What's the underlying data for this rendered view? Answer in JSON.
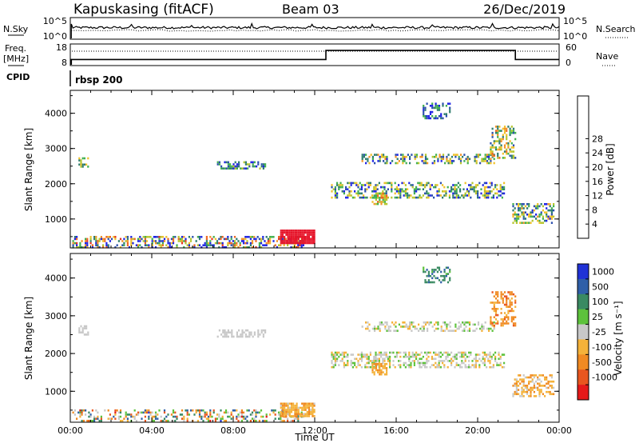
{
  "header": {
    "station": "Kapuskasing (fitACF)",
    "beam": "Beam 03",
    "date": "26/Dec/2019"
  },
  "nsky_panel": {
    "left_label": "N.Sky",
    "right_label": "N.Search",
    "left_ticks": [
      "10^5",
      "10^0"
    ],
    "right_ticks": [
      "10^5",
      "10^0"
    ]
  },
  "freq_panel": {
    "left_label_top": "Freq.",
    "left_label_unit": "[MHz]",
    "right_label": "Nave",
    "left_ticks": [
      "18",
      "8"
    ],
    "right_ticks": [
      "60",
      "0"
    ],
    "freq_steps": [
      {
        "t": 0.05,
        "v": 10.8
      },
      {
        "t": 12.55,
        "v": 15.0
      },
      {
        "t": 21.85,
        "v": 10.8
      },
      {
        "t": 24.0,
        "v": 10.8
      }
    ],
    "nave_dotted": 40
  },
  "cpid": {
    "label": "CPID",
    "program": "rbsp 200"
  },
  "chart_data": [
    {
      "type": "heatmap",
      "panel": "power",
      "ylabel": "Slant Range [km]",
      "xlabel": "",
      "xlim": [
        0,
        24
      ],
      "ylim": [
        180,
        4650
      ],
      "yticks": [
        "1000",
        "2000",
        "3000",
        "4000"
      ],
      "colorbar": {
        "label": "Power [dB]",
        "ticks": [
          "4",
          "8",
          "12",
          "16",
          "20",
          "24",
          "28"
        ],
        "colors": [
          "#1f23e6",
          "#2c4fae",
          "#2e7d6e",
          "#41b050",
          "#b6c62e",
          "#f1c12a",
          "#f39226",
          "#ee6621",
          "#e63221",
          "#e6142a"
        ]
      },
      "regions": [
        {
          "t0": 0.1,
          "t1": 11.5,
          "r0": 180,
          "r1": 520,
          "level": 0.35,
          "spread": 0.5,
          "density": 0.45
        },
        {
          "t0": 0.4,
          "t1": 0.9,
          "r0": 2450,
          "r1": 2750,
          "level": 0.4,
          "spread": 0.2,
          "density": 0.6
        },
        {
          "t0": 7.2,
          "t1": 9.6,
          "r0": 2420,
          "r1": 2640,
          "level": 0.25,
          "spread": 0.2,
          "density": 0.55
        },
        {
          "t0": 10.3,
          "t1": 12.0,
          "r0": 300,
          "r1": 700,
          "level": 0.95,
          "spread": 0.05,
          "density": 0.9
        },
        {
          "t0": 12.8,
          "t1": 21.3,
          "r0": 1600,
          "r1": 2050,
          "level": 0.3,
          "spread": 0.3,
          "density": 0.45
        },
        {
          "t0": 14.3,
          "t1": 20.9,
          "r0": 2550,
          "r1": 2850,
          "level": 0.35,
          "spread": 0.3,
          "density": 0.45
        },
        {
          "t0": 14.8,
          "t1": 15.6,
          "r0": 1400,
          "r1": 1750,
          "level": 0.55,
          "spread": 0.25,
          "density": 0.7
        },
        {
          "t0": 17.3,
          "t1": 18.7,
          "r0": 3850,
          "r1": 4300,
          "level": 0.2,
          "spread": 0.2,
          "density": 0.4
        },
        {
          "t0": 20.6,
          "t1": 21.9,
          "r0": 2700,
          "r1": 3650,
          "level": 0.45,
          "spread": 0.3,
          "density": 0.4
        },
        {
          "t0": 21.7,
          "t1": 23.8,
          "r0": 850,
          "r1": 1450,
          "level": 0.35,
          "spread": 0.3,
          "density": 0.5
        }
      ]
    },
    {
      "type": "heatmap",
      "panel": "velocity",
      "ylabel": "Slant Range [km]",
      "xlabel": "Time UT",
      "xlim": [
        0,
        24
      ],
      "ylim": [
        180,
        4650
      ],
      "xticks": [
        "00:00",
        "04:00",
        "08:00",
        "12:00",
        "16:00",
        "20:00",
        "00:00"
      ],
      "yticks": [
        "1000",
        "2000",
        "3000",
        "4000"
      ],
      "colorbar": {
        "label": "Velocity [m s⁻¹]",
        "ticks": [
          "1000",
          "500",
          "100",
          "25",
          "-25",
          "-100",
          "-500",
          "-1000"
        ],
        "colors": [
          "#2032d6",
          "#2f5fa8",
          "#3a8a62",
          "#5dc23c",
          "#c8c8c8",
          "#f4b23a",
          "#f08a22",
          "#e9561f",
          "#e61a1a"
        ]
      },
      "regions": [
        {
          "t0": 0.1,
          "t1": 11.5,
          "r0": 180,
          "r1": 520,
          "level": 0.5,
          "spread": 0.4,
          "density": 0.35
        },
        {
          "t0": 0.4,
          "t1": 0.9,
          "r0": 2450,
          "r1": 2750,
          "level": 0.5,
          "spread": 0.05,
          "density": 0.6
        },
        {
          "t0": 7.2,
          "t1": 9.6,
          "r0": 2420,
          "r1": 2640,
          "level": 0.5,
          "spread": 0.05,
          "density": 0.55
        },
        {
          "t0": 10.3,
          "t1": 12.0,
          "r0": 300,
          "r1": 700,
          "level": 0.62,
          "spread": 0.08,
          "density": 0.8
        },
        {
          "t0": 12.8,
          "t1": 21.3,
          "r0": 1600,
          "r1": 2050,
          "level": 0.5,
          "spread": 0.12,
          "density": 0.45
        },
        {
          "t0": 14.3,
          "t1": 20.9,
          "r0": 2550,
          "r1": 2850,
          "level": 0.5,
          "spread": 0.1,
          "density": 0.45
        },
        {
          "t0": 14.8,
          "t1": 15.6,
          "r0": 1400,
          "r1": 1750,
          "level": 0.65,
          "spread": 0.05,
          "density": 0.7
        },
        {
          "t0": 17.3,
          "t1": 18.7,
          "r0": 3850,
          "r1": 4300,
          "level": 0.25,
          "spread": 0.1,
          "density": 0.4
        },
        {
          "t0": 20.6,
          "t1": 21.9,
          "r0": 2700,
          "r1": 3650,
          "level": 0.72,
          "spread": 0.08,
          "density": 0.4
        },
        {
          "t0": 21.7,
          "t1": 23.8,
          "r0": 850,
          "r1": 1450,
          "level": 0.62,
          "spread": 0.12,
          "density": 0.5
        }
      ]
    }
  ]
}
